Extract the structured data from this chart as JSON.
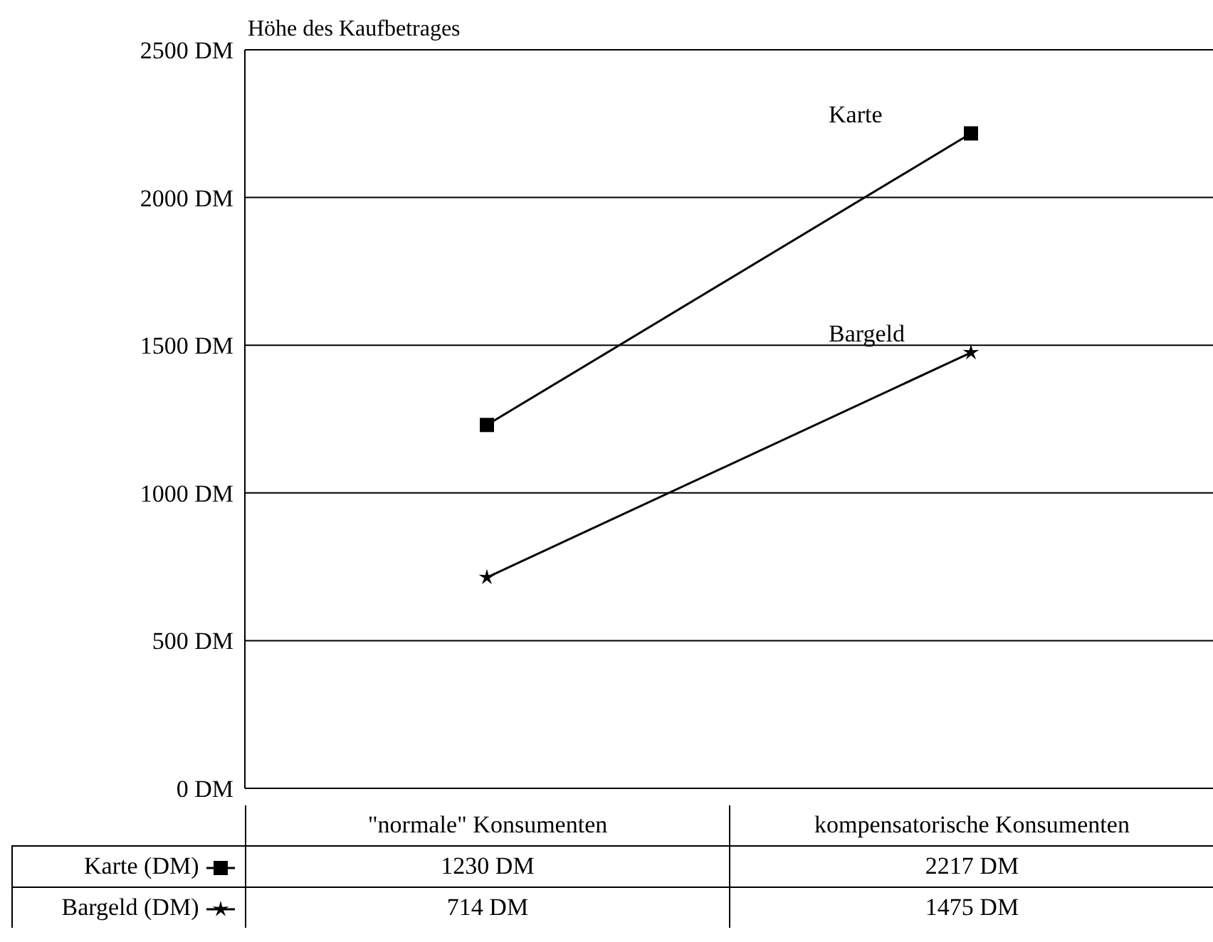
{
  "chart_data": {
    "type": "line",
    "ylabel": "Höhe des Kaufbetrages",
    "categories": [
      "\"normale\" Konsumenten",
      "kompensatorische Konsumenten"
    ],
    "series": [
      {
        "name": "Karte (DM)",
        "color": "#000000",
        "marker": "square",
        "values": [
          1230,
          2217
        ],
        "value_labels": [
          "1230 DM",
          "2217 DM"
        ]
      },
      {
        "name": "Bargeld (DM)",
        "color": "#000000",
        "marker": "star",
        "values": [
          714,
          1475
        ],
        "value_labels": [
          "714 DM",
          "1475 DM"
        ]
      }
    ],
    "ylim": [
      0,
      2500
    ],
    "yticks": [
      {
        "value": 0,
        "label": "0 DM"
      },
      {
        "value": 500,
        "label": "500 DM"
      },
      {
        "value": 1000,
        "label": "1000 DM"
      },
      {
        "value": 1500,
        "label": "1500 DM"
      },
      {
        "value": 2000,
        "label": "2000 DM"
      },
      {
        "value": 2500,
        "label": "2500 DM"
      }
    ],
    "grid": "y",
    "legend": "bottom",
    "line_style": "solid",
    "annotations": [
      "Karte",
      "Bargeld"
    ]
  }
}
